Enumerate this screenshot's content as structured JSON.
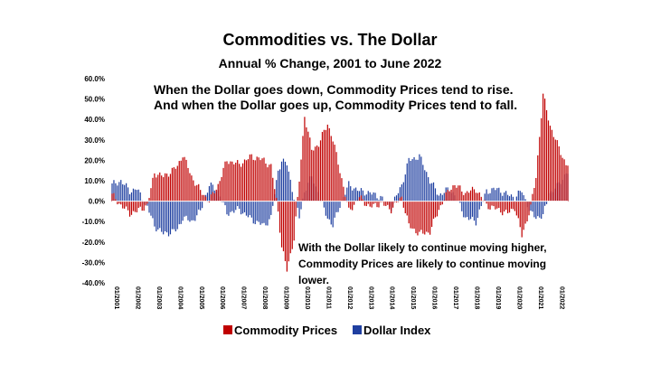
{
  "chart_data": {
    "type": "bar",
    "title": "Commodities vs. The Dollar",
    "subtitle": "Annual % Change, 2001 to June 2022",
    "annotation_top": [
      "When the Dollar goes down, Commodity Prices tend to rise.",
      "And when the Dollar goes up, Commodity Prices tend to fall."
    ],
    "annotation_bottom": [
      "With the Dollar likely to continue moving higher,",
      "Commodity Prices are likely to continue moving",
      "lower."
    ],
    "ylim": [
      -40,
      60
    ],
    "yticks": [
      60,
      50,
      40,
      30,
      20,
      10,
      0,
      -10,
      -20,
      -30,
      -40
    ],
    "ytick_labels": [
      "60.0%",
      "50.0%",
      "40.0%",
      "30.0%",
      "20.0%",
      "10.0%",
      "0.0%",
      "-10.0%",
      "-20.0%",
      "-30.0%",
      "-40.0%"
    ],
    "xtick_labels": [
      "01/2001",
      "01/2002",
      "01/2003",
      "01/2004",
      "01/2005",
      "01/2006",
      "01/2007",
      "01/2008",
      "01/2009",
      "01/2010",
      "01/2011",
      "01/2012",
      "01/2013",
      "01/2014",
      "01/2015",
      "01/2016",
      "01/2017",
      "01/2018",
      "01/2019",
      "01/2020",
      "01/2021",
      "01/2022"
    ],
    "grid": false,
    "legend_position": "bottom",
    "colors": {
      "commodity": "#C00000",
      "dollar": "#1F3FA0"
    },
    "series": [
      {
        "name": "Commodity Prices",
        "values": [
          {
            "date": "2001-01",
            "value": 3
          },
          {
            "date": "2001-06",
            "value": -2
          },
          {
            "date": "2001-11",
            "value": -6
          },
          {
            "date": "2002-03",
            "value": -5
          },
          {
            "date": "2002-09",
            "value": -2
          },
          {
            "date": "2003-01",
            "value": 14
          },
          {
            "date": "2003-06",
            "value": 12
          },
          {
            "date": "2003-11",
            "value": 15
          },
          {
            "date": "2004-02",
            "value": 17
          },
          {
            "date": "2004-05",
            "value": 23
          },
          {
            "date": "2004-10",
            "value": 12
          },
          {
            "date": "2005-03",
            "value": 5
          },
          {
            "date": "2005-08",
            "value": 0
          },
          {
            "date": "2006-01",
            "value": 8
          },
          {
            "date": "2006-06",
            "value": 20
          },
          {
            "date": "2007-01",
            "value": 18
          },
          {
            "date": "2007-08",
            "value": 22
          },
          {
            "date": "2008-03",
            "value": 20
          },
          {
            "date": "2008-07",
            "value": 17
          },
          {
            "date": "2008-11",
            "value": -5
          },
          {
            "date": "2009-01",
            "value": -22
          },
          {
            "date": "2009-04",
            "value": -34
          },
          {
            "date": "2009-08",
            "value": -18
          },
          {
            "date": "2009-11",
            "value": 10
          },
          {
            "date": "2010-02",
            "value": 42
          },
          {
            "date": "2010-06",
            "value": 25
          },
          {
            "date": "2010-10",
            "value": 28
          },
          {
            "date": "2011-03",
            "value": 38
          },
          {
            "date": "2011-06",
            "value": 30
          },
          {
            "date": "2011-10",
            "value": 15
          },
          {
            "date": "2012-03",
            "value": -5
          },
          {
            "date": "2012-09",
            "value": 2
          },
          {
            "date": "2013-03",
            "value": -3
          },
          {
            "date": "2013-09",
            "value": -1
          },
          {
            "date": "2014-03",
            "value": -4
          },
          {
            "date": "2014-09",
            "value": 2
          },
          {
            "date": "2015-01",
            "value": -12
          },
          {
            "date": "2015-07",
            "value": -16
          },
          {
            "date": "2016-01",
            "value": -15
          },
          {
            "date": "2016-06",
            "value": -4
          },
          {
            "date": "2016-12",
            "value": 6
          },
          {
            "date": "2017-03",
            "value": 8
          },
          {
            "date": "2017-09",
            "value": 4
          },
          {
            "date": "2018-03",
            "value": 6
          },
          {
            "date": "2018-09",
            "value": -2
          },
          {
            "date": "2019-03",
            "value": -4
          },
          {
            "date": "2019-09",
            "value": -6
          },
          {
            "date": "2020-01",
            "value": -3
          },
          {
            "date": "2020-05",
            "value": -17
          },
          {
            "date": "2020-10",
            "value": -3
          },
          {
            "date": "2021-01",
            "value": 12
          },
          {
            "date": "2021-05",
            "value": 52
          },
          {
            "date": "2021-09",
            "value": 37
          },
          {
            "date": "2022-01",
            "value": 28
          },
          {
            "date": "2022-06",
            "value": 18
          }
        ]
      },
      {
        "name": "Dollar Index",
        "values": [
          {
            "date": "2001-01",
            "value": 8
          },
          {
            "date": "2001-06",
            "value": 10
          },
          {
            "date": "2001-11",
            "value": 5
          },
          {
            "date": "2002-03",
            "value": 6
          },
          {
            "date": "2002-09",
            "value": -3
          },
          {
            "date": "2003-01",
            "value": -12
          },
          {
            "date": "2003-06",
            "value": -16
          },
          {
            "date": "2003-11",
            "value": -15
          },
          {
            "date": "2004-02",
            "value": -14
          },
          {
            "date": "2004-05",
            "value": -8
          },
          {
            "date": "2004-10",
            "value": -10
          },
          {
            "date": "2005-03",
            "value": -5
          },
          {
            "date": "2005-08",
            "value": 8
          },
          {
            "date": "2006-01",
            "value": 5
          },
          {
            "date": "2006-06",
            "value": -6
          },
          {
            "date": "2007-01",
            "value": -4
          },
          {
            "date": "2007-08",
            "value": -9
          },
          {
            "date": "2008-03",
            "value": -12
          },
          {
            "date": "2008-07",
            "value": -8
          },
          {
            "date": "2008-11",
            "value": 15
          },
          {
            "date": "2009-01",
            "value": 20
          },
          {
            "date": "2009-04",
            "value": 18
          },
          {
            "date": "2009-08",
            "value": 2
          },
          {
            "date": "2009-11",
            "value": -8
          },
          {
            "date": "2010-02",
            "value": 5
          },
          {
            "date": "2010-06",
            "value": 12
          },
          {
            "date": "2010-10",
            "value": 2
          },
          {
            "date": "2011-03",
            "value": -8
          },
          {
            "date": "2011-06",
            "value": -12
          },
          {
            "date": "2011-10",
            "value": -2
          },
          {
            "date": "2012-03",
            "value": 8
          },
          {
            "date": "2012-09",
            "value": 5
          },
          {
            "date": "2013-03",
            "value": 4
          },
          {
            "date": "2013-09",
            "value": 2
          },
          {
            "date": "2014-03",
            "value": -3
          },
          {
            "date": "2014-09",
            "value": 8
          },
          {
            "date": "2015-01",
            "value": 20
          },
          {
            "date": "2015-07",
            "value": 22
          },
          {
            "date": "2016-01",
            "value": 10
          },
          {
            "date": "2016-06",
            "value": 3
          },
          {
            "date": "2016-12",
            "value": 6
          },
          {
            "date": "2017-03",
            "value": 3
          },
          {
            "date": "2017-09",
            "value": -8
          },
          {
            "date": "2018-03",
            "value": -10
          },
          {
            "date": "2018-09",
            "value": 5
          },
          {
            "date": "2019-03",
            "value": 6
          },
          {
            "date": "2019-09",
            "value": 3
          },
          {
            "date": "2020-01",
            "value": 2
          },
          {
            "date": "2020-05",
            "value": 5
          },
          {
            "date": "2020-10",
            "value": -6
          },
          {
            "date": "2021-01",
            "value": -8
          },
          {
            "date": "2021-05",
            "value": -7
          },
          {
            "date": "2021-09",
            "value": 4
          },
          {
            "date": "2022-01",
            "value": 7
          },
          {
            "date": "2022-06",
            "value": 14
          }
        ]
      }
    ]
  }
}
